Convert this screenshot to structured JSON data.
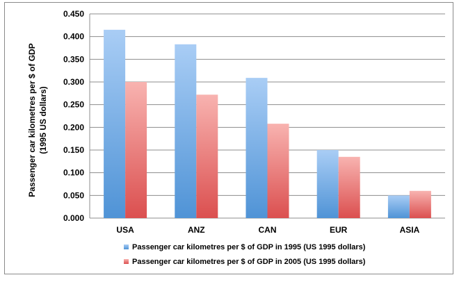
{
  "chart_data": {
    "type": "bar",
    "categories": [
      "USA",
      "ANZ",
      "CAN",
      "EUR",
      "ASIA"
    ],
    "series": [
      {
        "name": "Passenger car kilometres per $ of GDP in 1995 (US 1995 dollars)",
        "values": [
          0.415,
          0.383,
          0.309,
          0.15,
          0.05
        ],
        "color": "#5b9bd5"
      },
      {
        "name": "Passenger car kilometres per $ of GDP in 2005 (US 1995 dollars)",
        "values": [
          0.3,
          0.272,
          0.208,
          0.135,
          0.06
        ],
        "color": "#e05a5a"
      }
    ],
    "ylabel_line1": "Passenger car kilometres per $ of GDP",
    "ylabel_line2": "(1995 US dollars)",
    "ylim": [
      0,
      0.45
    ],
    "yticks": [
      "0.000",
      "0.050",
      "0.100",
      "0.150",
      "0.200",
      "0.250",
      "0.300",
      "0.350",
      "0.400",
      "0.450"
    ],
    "grid": true,
    "legend_position": "bottom"
  }
}
